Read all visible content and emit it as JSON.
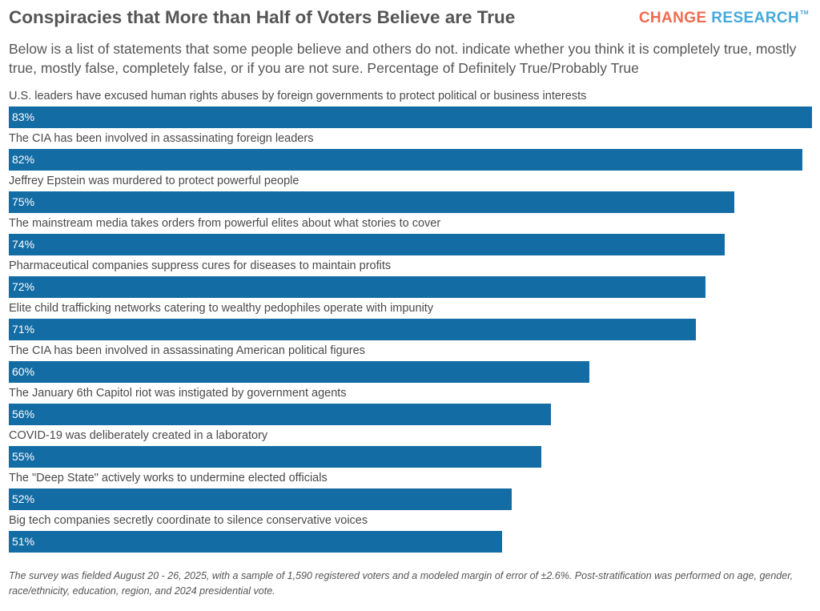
{
  "header": {
    "title": "Conspiracies that More than Half of Voters Believe are True",
    "logo_word1": "CHANGE",
    "logo_word2": "RESEARCH",
    "logo_tm": "TM",
    "subtitle": "Below is a list of statements that some people believe and others do not. indicate whether you think it is completely true, mostly true, mostly false, completely false, or if you are not sure. Percentage of Definitely True/Probably True"
  },
  "colors": {
    "bar": "#146ca5",
    "logo_orange": "#ef6b50",
    "logo_blue": "#44a9dc"
  },
  "chart_data": {
    "type": "bar",
    "orientation": "horizontal",
    "categories": [
      "U.S. leaders have excused human rights abuses by foreign governments to protect political or business interests",
      "The CIA has been involved in assassinating foreign leaders",
      "Jeffrey Epstein was murdered to protect powerful people",
      "The mainstream media takes orders from powerful elites about what stories to cover",
      "Pharmaceutical companies suppress cures for diseases to maintain profits",
      "Elite child trafficking networks catering to wealthy pedophiles operate with impunity",
      "The CIA has been involved in assassinating American political figures",
      "The January 6th Capitol riot was instigated by government agents",
      "COVID-19 was deliberately created in a laboratory",
      "The \"Deep State\" actively works to undermine elected officials",
      "Big tech companies secretly coordinate to silence conservative voices"
    ],
    "values": [
      83,
      82,
      75,
      74,
      72,
      71,
      60,
      56,
      55,
      52,
      51
    ],
    "labels": [
      "83%",
      "82%",
      "75%",
      "74%",
      "72%",
      "71%",
      "60%",
      "56%",
      "55%",
      "52%",
      "51%"
    ],
    "unit": "%",
    "xlim": [
      0,
      83
    ],
    "grid": false,
    "legend": "none"
  },
  "footnote": "The survey was fielded August 20 - 26, 2025, with a sample of 1,590 registered voters and a modeled margin of error of ±2.6%. Post-stratification was performed on age, gender, race/ethnicity, education, region, and 2024 presidential vote."
}
